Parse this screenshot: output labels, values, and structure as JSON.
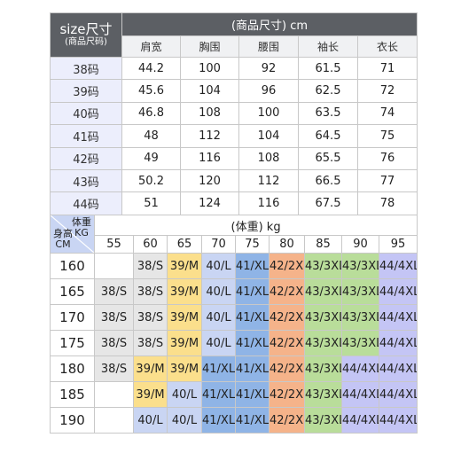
{
  "size_table": {
    "corner_title": "size尺寸",
    "corner_subtitle": "(商品尺码)",
    "header": "(商品尺寸) cm",
    "columns": [
      "肩宽",
      "胸围",
      "腰围",
      "袖长",
      "衣长"
    ],
    "rows": [
      {
        "size": "38码",
        "values": [
          "44.2",
          "100",
          "92",
          "61.5",
          "71"
        ]
      },
      {
        "size": "39码",
        "values": [
          "45.6",
          "104",
          "96",
          "62.5",
          "72"
        ]
      },
      {
        "size": "40码",
        "values": [
          "46.8",
          "108",
          "100",
          "63.5",
          "74"
        ]
      },
      {
        "size": "41码",
        "values": [
          "48",
          "112",
          "104",
          "64.5",
          "75"
        ]
      },
      {
        "size": "42码",
        "values": [
          "49",
          "116",
          "108",
          "65.5",
          "76"
        ]
      },
      {
        "size": "43码",
        "values": [
          "50.2",
          "120",
          "112",
          "66.5",
          "77"
        ]
      },
      {
        "size": "44码",
        "values": [
          "51",
          "124",
          "116",
          "67.5",
          "78"
        ]
      }
    ]
  },
  "fit_chart": {
    "corner_weight": "体重\nKG",
    "corner_height": "身高\nCM",
    "title": "(体重) kg",
    "weights": [
      "55",
      "60",
      "65",
      "70",
      "75",
      "80",
      "85",
      "90",
      "95"
    ],
    "rows": [
      {
        "height": "160",
        "cells": [
          "",
          "38/S",
          "39/M",
          "40/L",
          "41/XL",
          "42/2XL",
          "43/3XL",
          "43/3XL",
          "44/4XL"
        ]
      },
      {
        "height": "165",
        "cells": [
          "38/S",
          "38/S",
          "39/M",
          "40/L",
          "41/XL",
          "42/2XL",
          "43/3XL",
          "43/3XL",
          "44/4XL"
        ]
      },
      {
        "height": "170",
        "cells": [
          "38/S",
          "38/S",
          "39/M",
          "40/L",
          "41/XL",
          "42/2XL",
          "43/3XL",
          "43/3XL",
          "44/4XL"
        ]
      },
      {
        "height": "175",
        "cells": [
          "38/S",
          "38/S",
          "39/M",
          "40/L",
          "41/XL",
          "42/2XL",
          "43/3XL",
          "43/3XL",
          "44/4XL"
        ]
      },
      {
        "height": "180",
        "cells": [
          "38/S",
          "39/M",
          "39/M",
          "41/XL",
          "41/XL",
          "42/2XL",
          "43/3XL",
          "44/4XL",
          "44/4XL"
        ]
      },
      {
        "height": "185",
        "cells": [
          "",
          "39/M",
          "40/L",
          "41/XL",
          "41/XL",
          "42/2XL",
          "43/3XL",
          "44/4XL",
          "44/4XL"
        ]
      },
      {
        "height": "190",
        "cells": [
          "",
          "40/L",
          "40/L",
          "41/XL",
          "41/XL",
          "42/2XL",
          "43/3XL",
          "44/4XL",
          "44/4XL"
        ]
      }
    ]
  },
  "colors": {
    "header_dark": "#5c5f64",
    "size_col": "#eceefc",
    "38/S": "#e6e6e6",
    "39/M": "#fbdf8c",
    "40/L": "#c9d5f3",
    "41/XL": "#8fb4e6",
    "42/2XL": "#f5b38a",
    "43/3XL": "#b9dd9a",
    "44/4XL": "#c4c5f5"
  }
}
